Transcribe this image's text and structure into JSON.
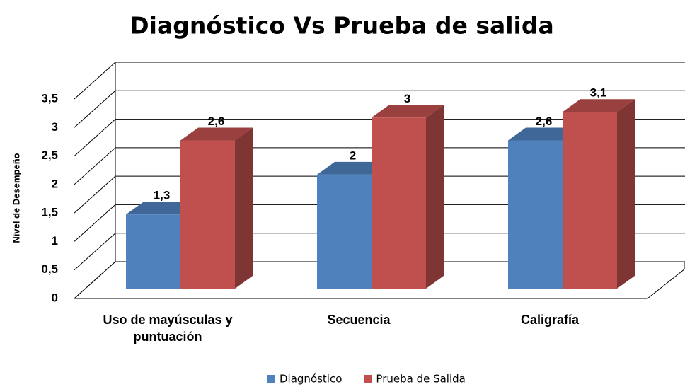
{
  "chart_data": {
    "type": "bar3d",
    "title": "Diagnóstico Vs Prueba de salida",
    "ylabel": "Nivel de Desempeño",
    "categories": [
      "Uso de mayúsculas y puntuación",
      "Secuencia",
      "Caligrafía"
    ],
    "series": [
      {
        "name": "Diagnóstico",
        "color": "#4f81bd",
        "values": [
          1.3,
          2,
          2.6
        ],
        "value_labels": [
          "1,3",
          "2",
          "2,6"
        ]
      },
      {
        "name": "Prueba de Salida",
        "color": "#c0504d",
        "values": [
          2.6,
          3,
          3.1
        ],
        "value_labels": [
          "2,6",
          "3",
          "3,1"
        ]
      }
    ],
    "ylim": [
      0,
      3.5
    ],
    "yticks": [
      0,
      {
        "value": 0.5,
        "label": "0,5"
      },
      1,
      {
        "value": 1.5,
        "label": "1,5"
      },
      2,
      {
        "value": 2.5,
        "label": "2,5"
      },
      3,
      {
        "value": 3.5,
        "label": "3,5"
      }
    ],
    "grid": true,
    "legend": "bottom"
  }
}
